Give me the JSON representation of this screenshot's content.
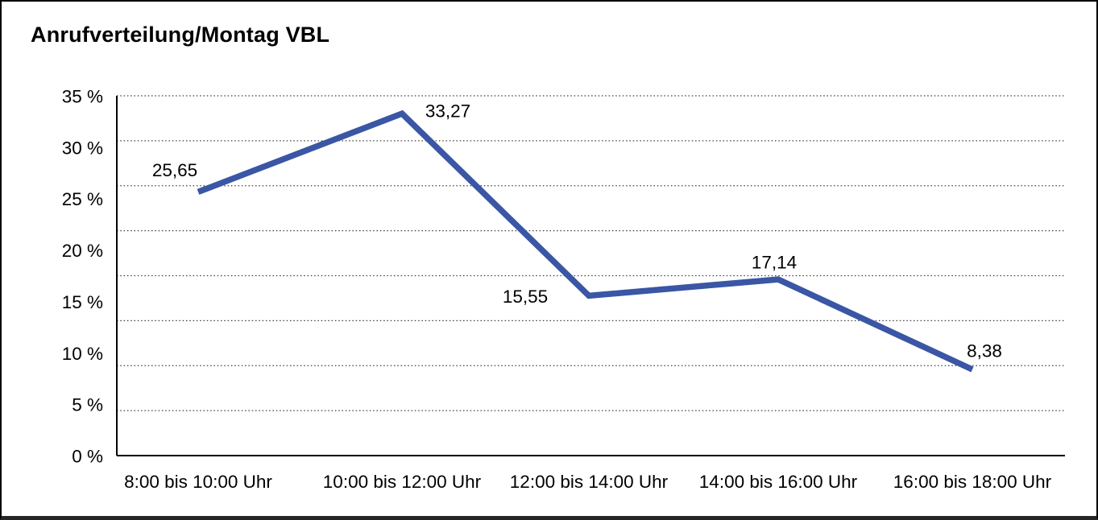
{
  "page": {
    "background": "#ffffff",
    "border_color": "#000000"
  },
  "chart": {
    "title": "Anrufverteilung/Montag VBL"
  },
  "chart_data": {
    "type": "line",
    "title": "Anrufverteilung/Montag VBL",
    "categories": [
      "8:00 bis 10:00 Uhr",
      "10:00 bis 12:00 Uhr",
      "12:00 bis 14:00 Uhr",
      "14:00 bis 16:00 Uhr",
      "16:00 bis 18:00 Uhr"
    ],
    "values": [
      25.65,
      33.27,
      15.55,
      17.14,
      8.38
    ],
    "point_labels": [
      "25,65",
      "33,27",
      "15,55",
      "17,14",
      "8,38"
    ],
    "ylim": [
      0,
      35
    ],
    "yticks": [
      35,
      30,
      25,
      20,
      15,
      10,
      5,
      0
    ],
    "ytick_labels": [
      "35 %",
      "30 %",
      "25 %",
      "20 %",
      "15 %",
      "10 %",
      "5 %",
      "0 %"
    ],
    "xlabel": "",
    "ylabel": "",
    "legend": "none",
    "grid": {
      "horizontal": true,
      "style": "dotted",
      "intervals": 8
    },
    "line_color": "#3A56A4",
    "axis_color": "#000000",
    "gridline_color": "#3c3c3c",
    "text_color": "#000000"
  }
}
